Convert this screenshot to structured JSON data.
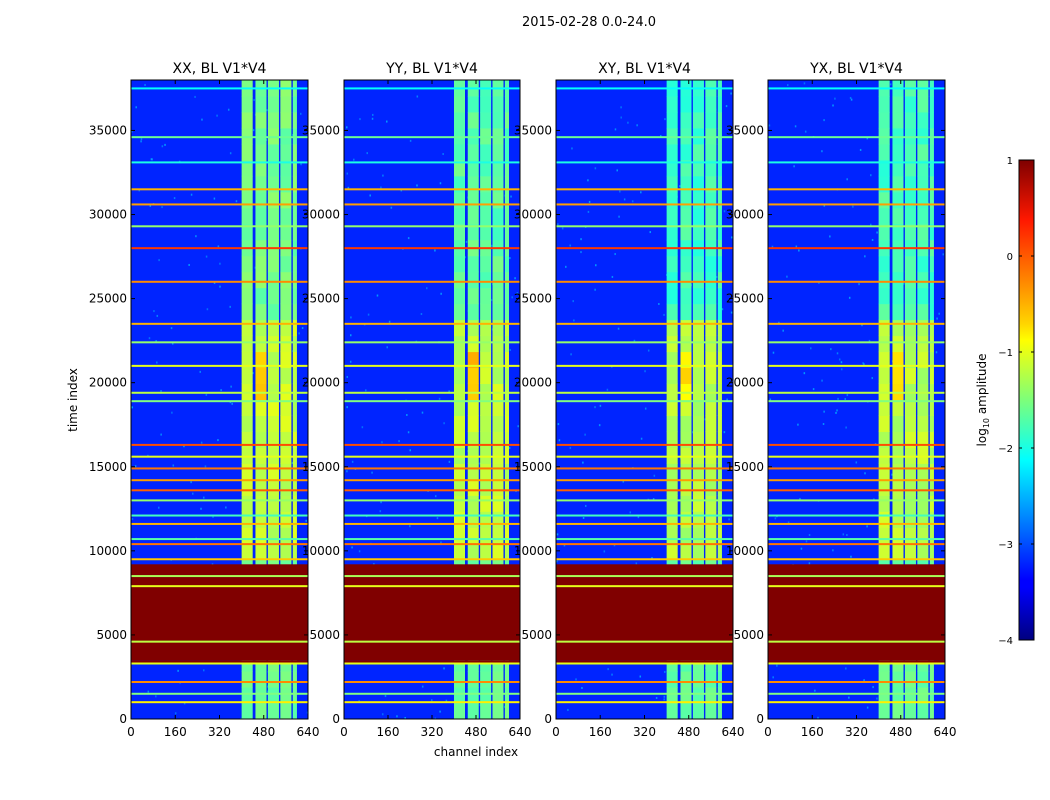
{
  "chart_data": {
    "type": "heatmap",
    "suptitle": "2015-02-28 0.0-24.0",
    "xlabel": "channel index",
    "ylabel": "time index",
    "xlim": [
      0,
      640
    ],
    "ylim": [
      0,
      38000
    ],
    "x_ticks": [
      0,
      160,
      320,
      480,
      640
    ],
    "x_tick_labels": [
      "0",
      "160",
      "320",
      "480",
      "640"
    ],
    "y_ticks": [
      0,
      5000,
      10000,
      15000,
      20000,
      25000,
      30000,
      35000
    ],
    "y_tick_labels": [
      "0",
      "5000",
      "10000",
      "15000",
      "20000",
      "25000",
      "30000",
      "35000"
    ],
    "colorbar": {
      "label_prefix": "log",
      "label_sub": "10",
      "label_suffix": " amplitude",
      "range": [
        -4,
        1
      ],
      "ticks": [
        1,
        0,
        -1,
        -2,
        -3,
        -4
      ],
      "tick_labels": [
        "1",
        "0",
        "−1",
        "−2",
        "−3",
        "−4"
      ],
      "colormap": "jet"
    },
    "panels": [
      {
        "title": "XX, BL V1*V4",
        "signal_level": 1.0,
        "top_signal": 1.0
      },
      {
        "title": "YY, BL V1*V4",
        "signal_level": 0.95,
        "top_signal": 0.8
      },
      {
        "title": "XY, BL V1*V4",
        "signal_level": 0.85,
        "top_signal": 0.55
      },
      {
        "title": "YX, BL V1*V4",
        "signal_level": 0.9,
        "top_signal": 0.6
      }
    ],
    "background_level": -3.2,
    "signal_channel_ranges": [
      [
        400,
        440
      ],
      [
        450,
        490
      ],
      [
        495,
        535
      ],
      [
        540,
        580
      ],
      [
        585,
        600
      ]
    ],
    "saturated_time_ranges": [
      [
        3300,
        3500
      ],
      [
        3500,
        9200
      ]
    ],
    "flagged_rows": [
      {
        "t": 1000,
        "v": -0.8
      },
      {
        "t": 1500,
        "v": -1.5
      },
      {
        "t": 2200,
        "v": -0.3
      },
      {
        "t": 3300,
        "v": -1.0
      },
      {
        "t": 4600,
        "v": -1.2
      },
      {
        "t": 7900,
        "v": -1.0
      },
      {
        "t": 8500,
        "v": -1.3
      },
      {
        "t": 9500,
        "v": -0.6
      },
      {
        "t": 10400,
        "v": -0.2
      },
      {
        "t": 10700,
        "v": -1.7
      },
      {
        "t": 11600,
        "v": -0.5
      },
      {
        "t": 12100,
        "v": -1.8
      },
      {
        "t": 13000,
        "v": -1.4
      },
      {
        "t": 13600,
        "v": -0.1
      },
      {
        "t": 14200,
        "v": -0.4
      },
      {
        "t": 14900,
        "v": -0.2
      },
      {
        "t": 15600,
        "v": -1.0
      },
      {
        "t": 16300,
        "v": 0.0
      },
      {
        "t": 18900,
        "v": -1.5
      },
      {
        "t": 19400,
        "v": -1.2
      },
      {
        "t": 21000,
        "v": -1.0
      },
      {
        "t": 22400,
        "v": -1.4
      },
      {
        "t": 23500,
        "v": -0.5
      },
      {
        "t": 26000,
        "v": -0.3
      },
      {
        "t": 28000,
        "v": 0.1
      },
      {
        "t": 29300,
        "v": -1.4
      },
      {
        "t": 30600,
        "v": -0.4
      },
      {
        "t": 31500,
        "v": -0.5
      },
      {
        "t": 33100,
        "v": -2.0
      },
      {
        "t": 34600,
        "v": -1.6
      },
      {
        "t": 37500,
        "v": -2.1
      }
    ]
  }
}
